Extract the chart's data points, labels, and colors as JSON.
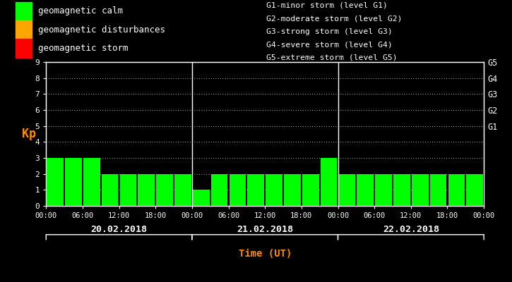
{
  "background_color": "#000000",
  "bar_color_calm": "#00ff00",
  "bar_color_disturbance": "#ffa500",
  "bar_color_storm": "#ff0000",
  "axis_color": "#ffffff",
  "kp_label_color": "#ff8c00",
  "time_label_color": "#ff8c00",
  "date_label_color": "#ffffff",
  "right_label_color": "#ffffff",
  "ylim": [
    0,
    9
  ],
  "yticks": [
    0,
    1,
    2,
    3,
    4,
    5,
    6,
    7,
    8,
    9
  ],
  "days": [
    "20.02.2018",
    "21.02.2018",
    "22.02.2018"
  ],
  "kp_values": [
    [
      3,
      3,
      3,
      2,
      2,
      2,
      2,
      2
    ],
    [
      1,
      2,
      2,
      2,
      2,
      2,
      2,
      3
    ],
    [
      2,
      2,
      2,
      2,
      2,
      2,
      2,
      2
    ]
  ],
  "right_axis_labels": [
    "G1",
    "G2",
    "G3",
    "G4",
    "G5"
  ],
  "right_axis_values": [
    5,
    6,
    7,
    8,
    9
  ],
  "legend_items": [
    {
      "label": "geomagnetic calm",
      "color": "#00ff00"
    },
    {
      "label": "geomagnetic disturbances",
      "color": "#ffa500"
    },
    {
      "label": "geomagnetic storm",
      "color": "#ff0000"
    }
  ],
  "storm_legend": [
    "G1-minor storm (level G1)",
    "G2-moderate storm (level G2)",
    "G3-strong storm (level G3)",
    "G4-severe storm (level G4)",
    "G5-extreme storm (level G5)"
  ],
  "kp_ylabel": "Kp",
  "time_xlabel": "Time (UT)",
  "calm_threshold": 4,
  "disturbance_threshold": 5,
  "figsize": [
    7.25,
    4.0
  ],
  "dpi": 100
}
